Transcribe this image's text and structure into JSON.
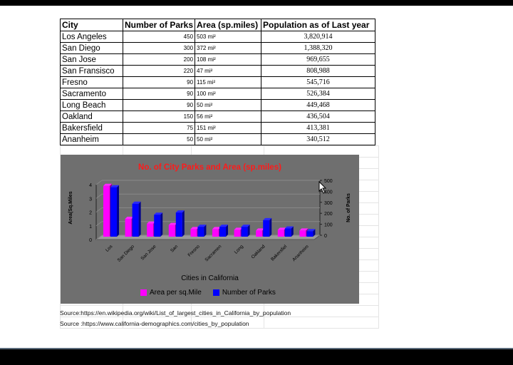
{
  "table": {
    "headers": [
      "City",
      "Number of Parks",
      "Area (sp.miles)",
      "Population as of Last year"
    ],
    "rows": [
      {
        "city": "Los Angeles",
        "parks": "450",
        "area": "503 mi²",
        "population": "3,820,914"
      },
      {
        "city": "San Diego",
        "parks": "300",
        "area": "372 mi²",
        "population": "1,388,320"
      },
      {
        "city": "San Jose",
        "parks": "200",
        "area": "108 mi²",
        "population": "969,655"
      },
      {
        "city": "San Fransisco",
        "parks": "220",
        "area": "47 mi²",
        "population": "808,988"
      },
      {
        "city": "Fresno",
        "parks": "90",
        "area": "115 mi²",
        "population": "545,716"
      },
      {
        "city": "Sacramento",
        "parks": "90",
        "area": "100 mi²",
        "population": "526,384"
      },
      {
        "city": "Long Beach",
        "parks": "90",
        "area": "50 mi²",
        "population": "449,468"
      },
      {
        "city": "Oakland",
        "parks": "150",
        "area": "56 mi²",
        "population": "436,504"
      },
      {
        "city": "Bakersfield",
        "parks": "75",
        "area": "151 mi²",
        "population": "413,381"
      },
      {
        "city": "Ananheim",
        "parks": "50",
        "area": "50 mi²",
        "population": "340,512"
      }
    ]
  },
  "chart_data": {
    "type": "bar",
    "title": "No. of City Parks and Area (sp.miles)",
    "xlabel": "Cities in California",
    "ylabel": "Area(Sq.Miles",
    "y2label": "No. of Parks",
    "categories": [
      "Los",
      "San Diego",
      "San Jose",
      "San",
      "Fresno",
      "Sacramen",
      "Long",
      "Oakland",
      "Bakersfiel",
      "Ananheim"
    ],
    "series": [
      {
        "name": "Area per sq.Mile",
        "axis": "left",
        "color": "#ff00ff",
        "values": [
          3.7,
          1.3,
          0.95,
          0.85,
          0.55,
          0.55,
          0.5,
          0.45,
          0.5,
          0.45
        ]
      },
      {
        "name": "Number of Parks",
        "axis": "right",
        "color": "#0000ff",
        "values": [
          450,
          300,
          200,
          220,
          90,
          90,
          90,
          150,
          75,
          50
        ]
      }
    ],
    "y_ticks": [
      "0",
      "1",
      "2",
      "3",
      "4"
    ],
    "y2_ticks": [
      "0",
      "100",
      "200",
      "300",
      "400",
      "500"
    ],
    "ylim": [
      0,
      4
    ],
    "y2lim": [
      0,
      500
    ],
    "legend": "bottom"
  },
  "sources": [
    "Source:https://en.wikipedia.org/wiki/List_of_largest_cities_in_California_by_population",
    "Source :https://www.california-demographics.com/cities_by_population"
  ],
  "colors": {
    "chart_bg": "#6f6f6f",
    "title": "#ff1a1a",
    "series1": "#ff00ff",
    "series2": "#0000ff"
  }
}
